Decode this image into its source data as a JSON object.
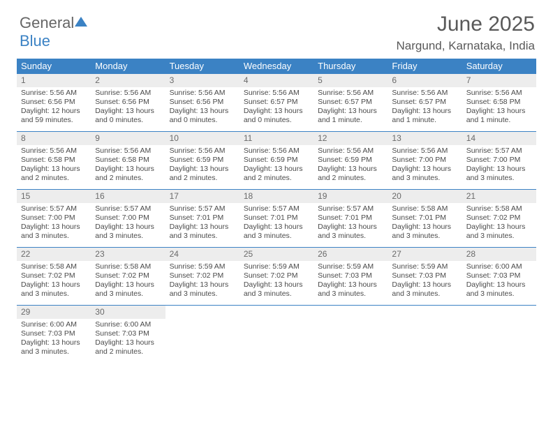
{
  "logo": {
    "part1": "General",
    "part2": "Blue"
  },
  "title": "June 2025",
  "subtitle": "Nargund, Karnataka, India",
  "colors": {
    "header_bg": "#3b82c4",
    "header_text": "#ffffff",
    "daynum_bg": "#ededed",
    "daynum_text": "#6a6a6a",
    "body_text": "#4a4a4a",
    "title_text": "#595959",
    "rule": "#3b82c4"
  },
  "dayNames": [
    "Sunday",
    "Monday",
    "Tuesday",
    "Wednesday",
    "Thursday",
    "Friday",
    "Saturday"
  ],
  "weeks": [
    [
      {
        "n": "1",
        "sunrise": "Sunrise: 5:56 AM",
        "sunset": "Sunset: 6:56 PM",
        "daylight": "Daylight: 12 hours and 59 minutes."
      },
      {
        "n": "2",
        "sunrise": "Sunrise: 5:56 AM",
        "sunset": "Sunset: 6:56 PM",
        "daylight": "Daylight: 13 hours and 0 minutes."
      },
      {
        "n": "3",
        "sunrise": "Sunrise: 5:56 AM",
        "sunset": "Sunset: 6:56 PM",
        "daylight": "Daylight: 13 hours and 0 minutes."
      },
      {
        "n": "4",
        "sunrise": "Sunrise: 5:56 AM",
        "sunset": "Sunset: 6:57 PM",
        "daylight": "Daylight: 13 hours and 0 minutes."
      },
      {
        "n": "5",
        "sunrise": "Sunrise: 5:56 AM",
        "sunset": "Sunset: 6:57 PM",
        "daylight": "Daylight: 13 hours and 1 minute."
      },
      {
        "n": "6",
        "sunrise": "Sunrise: 5:56 AM",
        "sunset": "Sunset: 6:57 PM",
        "daylight": "Daylight: 13 hours and 1 minute."
      },
      {
        "n": "7",
        "sunrise": "Sunrise: 5:56 AM",
        "sunset": "Sunset: 6:58 PM",
        "daylight": "Daylight: 13 hours and 1 minute."
      }
    ],
    [
      {
        "n": "8",
        "sunrise": "Sunrise: 5:56 AM",
        "sunset": "Sunset: 6:58 PM",
        "daylight": "Daylight: 13 hours and 2 minutes."
      },
      {
        "n": "9",
        "sunrise": "Sunrise: 5:56 AM",
        "sunset": "Sunset: 6:58 PM",
        "daylight": "Daylight: 13 hours and 2 minutes."
      },
      {
        "n": "10",
        "sunrise": "Sunrise: 5:56 AM",
        "sunset": "Sunset: 6:59 PM",
        "daylight": "Daylight: 13 hours and 2 minutes."
      },
      {
        "n": "11",
        "sunrise": "Sunrise: 5:56 AM",
        "sunset": "Sunset: 6:59 PM",
        "daylight": "Daylight: 13 hours and 2 minutes."
      },
      {
        "n": "12",
        "sunrise": "Sunrise: 5:56 AM",
        "sunset": "Sunset: 6:59 PM",
        "daylight": "Daylight: 13 hours and 2 minutes."
      },
      {
        "n": "13",
        "sunrise": "Sunrise: 5:56 AM",
        "sunset": "Sunset: 7:00 PM",
        "daylight": "Daylight: 13 hours and 3 minutes."
      },
      {
        "n": "14",
        "sunrise": "Sunrise: 5:57 AM",
        "sunset": "Sunset: 7:00 PM",
        "daylight": "Daylight: 13 hours and 3 minutes."
      }
    ],
    [
      {
        "n": "15",
        "sunrise": "Sunrise: 5:57 AM",
        "sunset": "Sunset: 7:00 PM",
        "daylight": "Daylight: 13 hours and 3 minutes."
      },
      {
        "n": "16",
        "sunrise": "Sunrise: 5:57 AM",
        "sunset": "Sunset: 7:00 PM",
        "daylight": "Daylight: 13 hours and 3 minutes."
      },
      {
        "n": "17",
        "sunrise": "Sunrise: 5:57 AM",
        "sunset": "Sunset: 7:01 PM",
        "daylight": "Daylight: 13 hours and 3 minutes."
      },
      {
        "n": "18",
        "sunrise": "Sunrise: 5:57 AM",
        "sunset": "Sunset: 7:01 PM",
        "daylight": "Daylight: 13 hours and 3 minutes."
      },
      {
        "n": "19",
        "sunrise": "Sunrise: 5:57 AM",
        "sunset": "Sunset: 7:01 PM",
        "daylight": "Daylight: 13 hours and 3 minutes."
      },
      {
        "n": "20",
        "sunrise": "Sunrise: 5:58 AM",
        "sunset": "Sunset: 7:01 PM",
        "daylight": "Daylight: 13 hours and 3 minutes."
      },
      {
        "n": "21",
        "sunrise": "Sunrise: 5:58 AM",
        "sunset": "Sunset: 7:02 PM",
        "daylight": "Daylight: 13 hours and 3 minutes."
      }
    ],
    [
      {
        "n": "22",
        "sunrise": "Sunrise: 5:58 AM",
        "sunset": "Sunset: 7:02 PM",
        "daylight": "Daylight: 13 hours and 3 minutes."
      },
      {
        "n": "23",
        "sunrise": "Sunrise: 5:58 AM",
        "sunset": "Sunset: 7:02 PM",
        "daylight": "Daylight: 13 hours and 3 minutes."
      },
      {
        "n": "24",
        "sunrise": "Sunrise: 5:59 AM",
        "sunset": "Sunset: 7:02 PM",
        "daylight": "Daylight: 13 hours and 3 minutes."
      },
      {
        "n": "25",
        "sunrise": "Sunrise: 5:59 AM",
        "sunset": "Sunset: 7:02 PM",
        "daylight": "Daylight: 13 hours and 3 minutes."
      },
      {
        "n": "26",
        "sunrise": "Sunrise: 5:59 AM",
        "sunset": "Sunset: 7:03 PM",
        "daylight": "Daylight: 13 hours and 3 minutes."
      },
      {
        "n": "27",
        "sunrise": "Sunrise: 5:59 AM",
        "sunset": "Sunset: 7:03 PM",
        "daylight": "Daylight: 13 hours and 3 minutes."
      },
      {
        "n": "28",
        "sunrise": "Sunrise: 6:00 AM",
        "sunset": "Sunset: 7:03 PM",
        "daylight": "Daylight: 13 hours and 3 minutes."
      }
    ],
    [
      {
        "n": "29",
        "sunrise": "Sunrise: 6:00 AM",
        "sunset": "Sunset: 7:03 PM",
        "daylight": "Daylight: 13 hours and 3 minutes."
      },
      {
        "n": "30",
        "sunrise": "Sunrise: 6:00 AM",
        "sunset": "Sunset: 7:03 PM",
        "daylight": "Daylight: 13 hours and 2 minutes."
      },
      {
        "empty": true
      },
      {
        "empty": true
      },
      {
        "empty": true
      },
      {
        "empty": true
      },
      {
        "empty": true
      }
    ]
  ]
}
